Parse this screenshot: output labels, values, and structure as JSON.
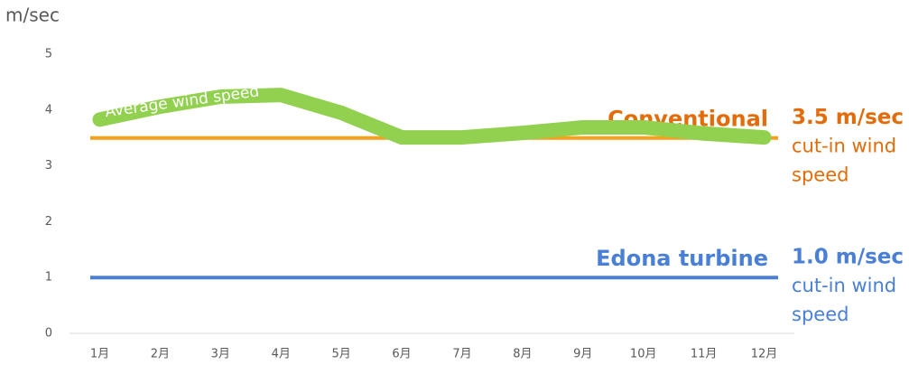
{
  "chart_data": {
    "type": "line",
    "y_label": "m/sec",
    "categories": [
      "1月",
      "2月",
      "3月",
      "4月",
      "5月",
      "6月",
      "7月",
      "8月",
      "9月",
      "10月",
      "11月",
      "12月"
    ],
    "series": [
      {
        "name": "Average wind speed",
        "color": "#92d050",
        "values": [
          3.83,
          4.06,
          4.24,
          4.27,
          3.95,
          3.51,
          3.51,
          3.59,
          3.69,
          3.69,
          3.58,
          3.51
        ]
      }
    ],
    "reference_lines": [
      {
        "value": 3.5,
        "color": "#f5a11c",
        "text_color": "#e36c0a",
        "label": "Conventional",
        "note": [
          "3.5 m/sec",
          "cut-in wind",
          "speed"
        ]
      },
      {
        "value": 1.0,
        "color": "#4a7fd6",
        "text_color": "#4a7fd6",
        "label": "Edona turbine",
        "note": [
          "1.0 m/sec",
          "cut-in wind",
          "speed"
        ]
      }
    ],
    "ylim": [
      0,
      5
    ],
    "yticks": [
      0,
      1,
      2,
      3,
      4,
      5
    ],
    "grid": false
  }
}
